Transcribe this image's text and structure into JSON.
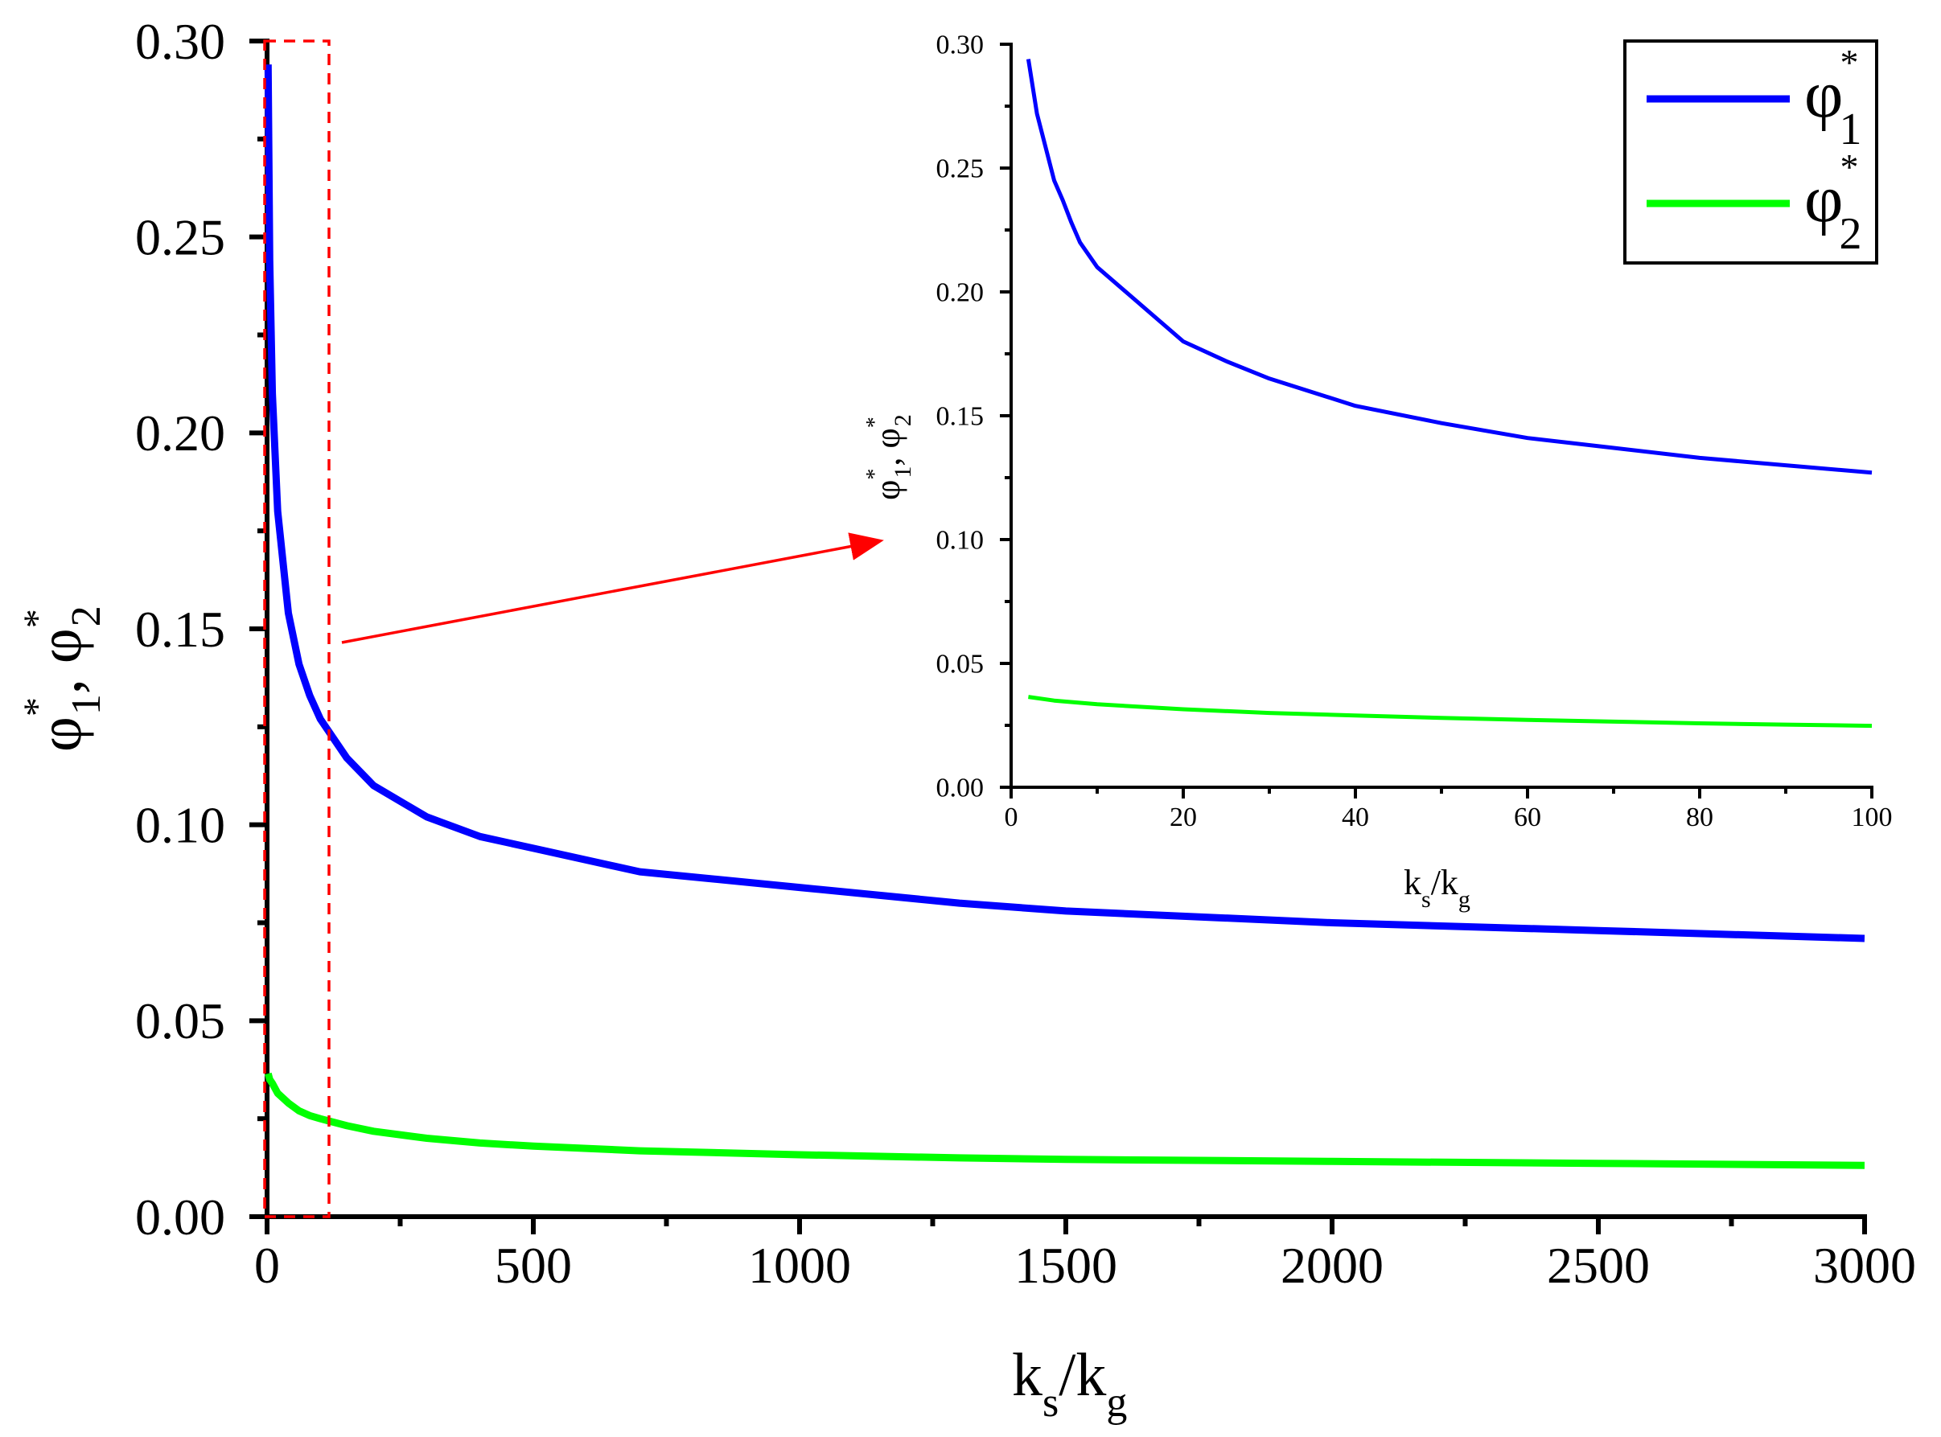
{
  "chart_data": [
    {
      "type": "line",
      "role": "main",
      "title": "",
      "xlabel": "k_s/k_g",
      "ylabel": "φ*_1, φ*_2",
      "xlim": [
        0,
        3000
      ],
      "ylim": [
        0.0,
        0.3
      ],
      "x_ticks": [
        0,
        500,
        1000,
        1500,
        2000,
        2500,
        3000
      ],
      "x_tick_labels": [
        "0",
        "500",
        "1000",
        "1500",
        "2000",
        "2500",
        "3000"
      ],
      "y_ticks": [
        0.0,
        0.05,
        0.1,
        0.15,
        0.2,
        0.25,
        0.3
      ],
      "y_tick_labels": [
        "0.00",
        "0.05",
        "0.10",
        "0.15",
        "0.20",
        "0.25",
        "0.30"
      ],
      "grid": false,
      "legend_position": "upper right",
      "series": [
        {
          "name": "φ*_1",
          "color": "#0000ff",
          "x": [
            2,
            5,
            10,
            20,
            40,
            60,
            80,
            100,
            150,
            200,
            300,
            400,
            500,
            700,
            1000,
            1300,
            1500,
            2000,
            2500,
            3000
          ],
          "values": [
            0.294,
            0.244,
            0.21,
            0.18,
            0.154,
            0.141,
            0.133,
            0.127,
            0.117,
            0.11,
            0.102,
            0.097,
            0.094,
            0.088,
            0.084,
            0.08,
            0.078,
            0.075,
            0.073,
            0.071
          ]
        },
        {
          "name": "φ*_2",
          "color": "#00ff00",
          "x": [
            2,
            5,
            10,
            20,
            40,
            60,
            80,
            100,
            150,
            200,
            300,
            400,
            500,
            700,
            1000,
            1300,
            1500,
            2000,
            2500,
            3000
          ],
          "values": [
            0.0365,
            0.035,
            0.034,
            0.0315,
            0.029,
            0.027,
            0.0258,
            0.025,
            0.0232,
            0.0218,
            0.02,
            0.0188,
            0.018,
            0.0168,
            0.0158,
            0.015,
            0.0146,
            0.0141,
            0.0136,
            0.0131
          ]
        }
      ],
      "annotations": [
        {
          "type": "dashed-rectangle",
          "color": "#ff0000",
          "x_range": [
            0,
            120
          ],
          "y_range": [
            0.0,
            0.3
          ]
        },
        {
          "type": "arrow",
          "color": "#ff0000",
          "from": "dashed-rectangle",
          "to": "inset"
        }
      ]
    },
    {
      "type": "line",
      "role": "inset",
      "title": "",
      "xlabel": "k_s/k_g",
      "ylabel": "φ*_1, φ*_2",
      "xlim": [
        0,
        100
      ],
      "ylim": [
        0.0,
        0.3
      ],
      "x_ticks": [
        0,
        20,
        40,
        60,
        80,
        100
      ],
      "x_tick_labels": [
        "0",
        "20",
        "40",
        "60",
        "80",
        "100"
      ],
      "y_ticks": [
        0.0,
        0.05,
        0.1,
        0.15,
        0.2,
        0.25,
        0.3
      ],
      "y_tick_labels": [
        "0.00",
        "0.05",
        "0.10",
        "0.15",
        "0.20",
        "0.25",
        "0.30"
      ],
      "grid": false,
      "series": [
        {
          "name": "φ*_1",
          "color": "#0000ff",
          "x": [
            2,
            3,
            5,
            6,
            7,
            8,
            10,
            15,
            20,
            25,
            30,
            40,
            50,
            60,
            70,
            80,
            90,
            100
          ],
          "values": [
            0.294,
            0.272,
            0.245,
            0.237,
            0.228,
            0.22,
            0.21,
            0.195,
            0.18,
            0.172,
            0.165,
            0.154,
            0.147,
            0.141,
            0.137,
            0.133,
            0.13,
            0.127
          ]
        },
        {
          "name": "φ*_2",
          "color": "#00ff00",
          "x": [
            2,
            5,
            10,
            20,
            30,
            40,
            50,
            60,
            70,
            80,
            90,
            100
          ],
          "values": [
            0.0365,
            0.035,
            0.0335,
            0.0315,
            0.03,
            0.029,
            0.028,
            0.0272,
            0.0265,
            0.0258,
            0.0253,
            0.0248
          ]
        }
      ]
    }
  ],
  "legend": {
    "items": [
      {
        "symbol": "φ",
        "sup": "*",
        "sub": "1",
        "color": "#0000ff"
      },
      {
        "symbol": "φ",
        "sup": "*",
        "sub": "2",
        "color": "#00ff00"
      }
    ]
  },
  "labels": {
    "main_xlabel": {
      "main": "k",
      "sub1": "s",
      "slash": "/",
      "main2": "k",
      "sub2": "g"
    },
    "main_ylabel": {
      "phi": "φ",
      "sup": "*",
      "sub1": "1",
      "sep": ", ",
      "sub2": "2"
    }
  },
  "colors": {
    "phi1": "#0000ff",
    "phi2": "#00ff00",
    "annotation": "#ff0000",
    "axis": "#000000"
  }
}
